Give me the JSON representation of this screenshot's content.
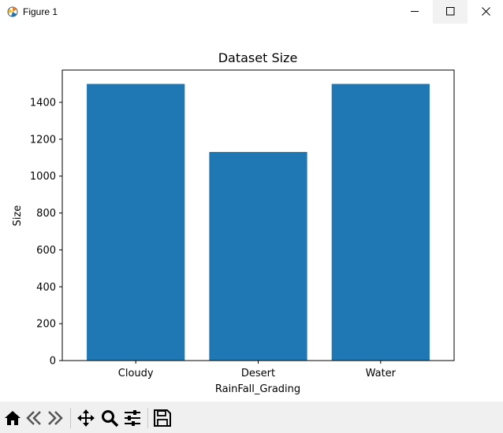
{
  "window": {
    "title": "Figure 1"
  },
  "toolbar": {
    "buttons": [
      {
        "name": "home",
        "icon": "home-icon"
      },
      {
        "name": "back",
        "icon": "back-arrow-icon"
      },
      {
        "name": "forward",
        "icon": "forward-arrow-icon"
      },
      {
        "name": "pan",
        "icon": "move-icon"
      },
      {
        "name": "zoom",
        "icon": "zoom-icon"
      },
      {
        "name": "configure",
        "icon": "sliders-icon"
      },
      {
        "name": "save",
        "icon": "save-icon"
      }
    ]
  },
  "chart_data": {
    "type": "bar",
    "title": "Dataset Size",
    "xlabel": "RainFall_Grading",
    "ylabel": "Size",
    "categories": [
      "Cloudy",
      "Desert",
      "Water"
    ],
    "values": [
      1500,
      1131,
      1500
    ],
    "ylim": [
      0,
      1575
    ],
    "yticks": [
      0,
      200,
      400,
      600,
      800,
      1000,
      1200,
      1400
    ],
    "bar_color": "#1f77b4",
    "grid": false
  }
}
